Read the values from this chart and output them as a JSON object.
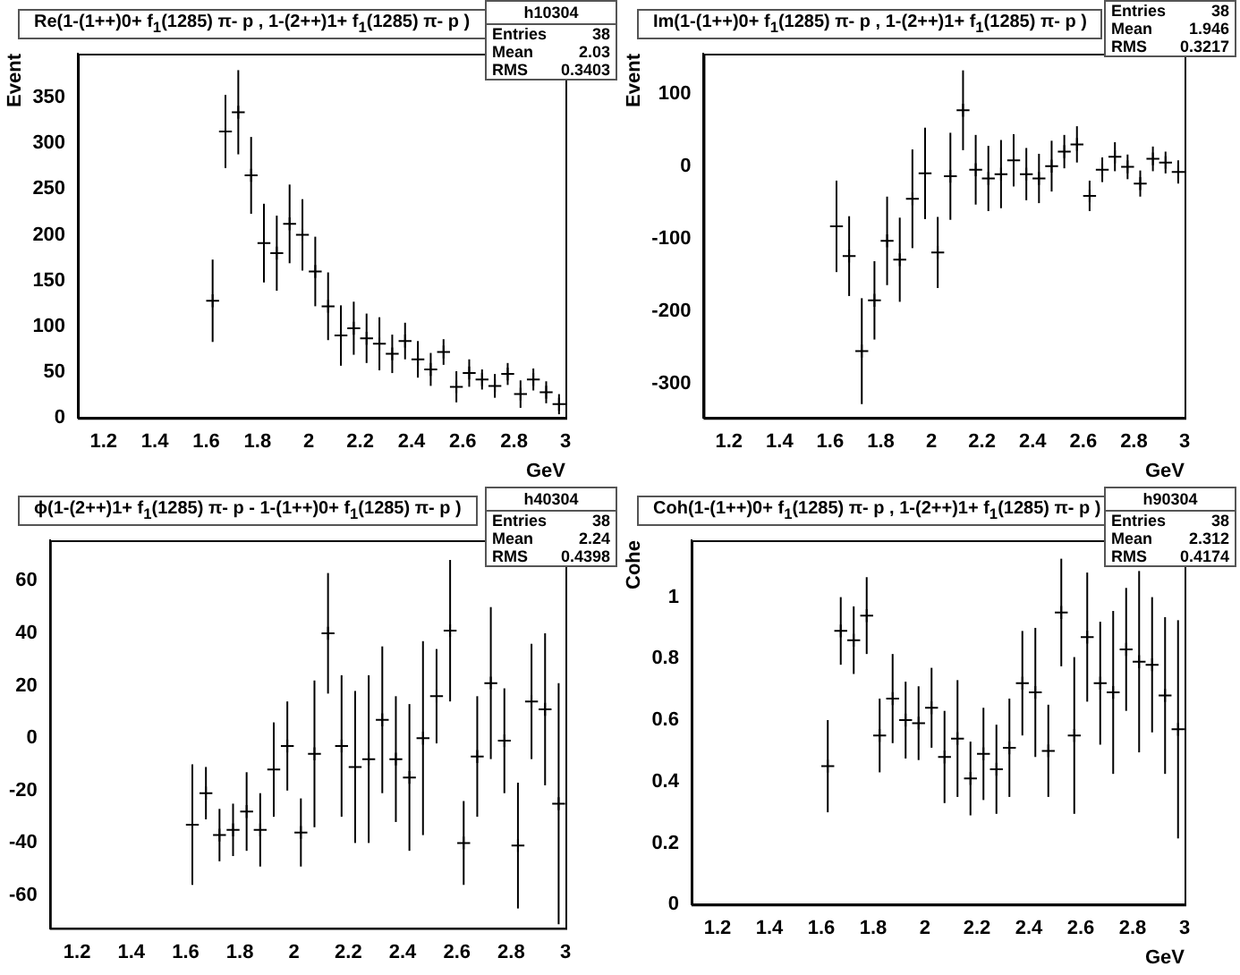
{
  "chart_data": [
    {
      "type": "scatter",
      "title": "Re(1-(1++)0+ f$_{1}$(1285) π- p , 1-(2++)1+ f$_{1}$(1285) π- p )",
      "xlabel": "GeV",
      "ylabel": "Event",
      "color": "#000000",
      "marker": "cross",
      "grid": false,
      "x": [
        1.625,
        1.675,
        1.725,
        1.775,
        1.825,
        1.875,
        1.925,
        1.975,
        2.025,
        2.075,
        2.125,
        2.175,
        2.225,
        2.275,
        2.325,
        2.375,
        2.425,
        2.475,
        2.525,
        2.575,
        2.625,
        2.675,
        2.725,
        2.775,
        2.825,
        2.875,
        2.925,
        2.975
      ],
      "values": [
        128,
        313,
        334,
        265,
        191,
        180,
        212,
        200,
        160,
        122,
        90,
        98,
        87,
        81,
        70,
        84,
        64,
        53,
        72,
        34,
        49,
        42,
        35,
        48,
        26,
        42,
        28,
        15
      ],
      "errors": [
        45,
        40,
        46,
        42,
        43,
        41,
        43,
        39,
        38,
        37,
        33,
        29,
        27,
        29,
        21,
        20,
        20,
        18,
        14,
        17,
        15,
        11,
        13,
        12,
        15,
        12,
        12,
        11
      ],
      "xlim": [
        1.1,
        3
      ],
      "ylim": [
        0,
        398
      ],
      "xticks": [
        1.2,
        1.4,
        1.6,
        1.8,
        2,
        2.2,
        2.4,
        2.6,
        2.8,
        3
      ],
      "yticks": [
        0,
        50,
        100,
        150,
        200,
        250,
        300,
        350
      ],
      "annotations": [
        "h10304",
        "Entries",
        "38",
        "Mean",
        "2.03",
        "RMS",
        "0.3403"
      ]
    },
    {
      "type": "scatter",
      "title": "Im(1-(1++)0+ f$_{1}$(1285) π- p , 1-(2++)1+ f$_{1}$(1285) π- p )",
      "xlabel": "GeV",
      "ylabel": "Event",
      "color": "#000000",
      "marker": "cross",
      "grid": false,
      "x": [
        1.625,
        1.675,
        1.725,
        1.775,
        1.825,
        1.875,
        1.925,
        1.975,
        2.025,
        2.075,
        2.125,
        2.175,
        2.225,
        2.275,
        2.325,
        2.375,
        2.425,
        2.475,
        2.525,
        2.575,
        2.625,
        2.675,
        2.725,
        2.775,
        2.825,
        2.875,
        2.925,
        2.975
      ],
      "values": [
        -83,
        -124,
        -255,
        -185,
        -103,
        -129,
        -45,
        -10,
        -119,
        -14,
        77,
        -5,
        -17,
        -11,
        8,
        -11,
        -17,
        0,
        20,
        30,
        -41,
        -5,
        13,
        -1,
        -24,
        10,
        5,
        -8
      ],
      "errors": [
        63,
        55,
        73,
        54,
        61,
        58,
        68,
        63,
        49,
        60,
        55,
        48,
        45,
        47,
        36,
        36,
        34,
        35,
        23,
        25,
        21,
        17,
        20,
        17,
        18,
        17,
        15,
        16
      ],
      "xlim": [
        1.1,
        3
      ],
      "ylim": [
        -347,
        155
      ],
      "xticks": [
        1.2,
        1.4,
        1.6,
        1.8,
        2,
        2.2,
        2.4,
        2.6,
        2.8,
        3
      ],
      "yticks": [
        -300,
        -200,
        -100,
        0,
        100
      ],
      "annotations": [
        "Entries",
        "38",
        "Mean",
        "1.946",
        "RMS",
        "0.3217"
      ]
    },
    {
      "type": "scatter",
      "title": "ϕ(1-(2++)1+ f$_{1}$(1285) π- p - 1-(1++)0+ f$_{1}$(1285) π- p )",
      "color": "#000000",
      "marker": "cross",
      "grid": false,
      "x": [
        1.625,
        1.675,
        1.725,
        1.775,
        1.825,
        1.875,
        1.925,
        1.975,
        2.025,
        2.075,
        2.125,
        2.175,
        2.225,
        2.275,
        2.325,
        2.375,
        2.425,
        2.475,
        2.525,
        2.575,
        2.625,
        2.675,
        2.725,
        2.775,
        2.825,
        2.875,
        2.925,
        2.975
      ],
      "values": [
        -33,
        -21,
        -37,
        -35,
        -28,
        -35,
        -12,
        -3,
        -36,
        -6,
        40,
        -3,
        -11,
        -8,
        7,
        -8,
        -15,
        0,
        16,
        41,
        -40,
        -7,
        21,
        -1,
        -41,
        14,
        11,
        -25
      ],
      "errors": [
        23,
        10,
        10,
        10,
        15,
        14,
        18,
        17,
        13,
        28,
        23,
        27,
        29,
        32,
        28,
        24,
        28,
        37,
        18,
        27,
        16,
        23,
        29,
        20,
        24,
        22,
        29,
        46
      ],
      "xlim": [
        1.1,
        3
      ],
      "ylim": [
        -72.5,
        75.5
      ],
      "xticks": [
        1.2,
        1.4,
        1.6,
        1.8,
        2,
        2.2,
        2.4,
        2.6,
        2.8,
        3
      ],
      "yticks": [
        -60,
        -40,
        -20,
        0,
        20,
        40,
        60
      ],
      "annotations": [
        "h40304",
        "Entries",
        "38",
        "Mean",
        "2.24",
        "RMS",
        "0.4398"
      ]
    },
    {
      "type": "scatter",
      "title": "Coh(1-(1++)0+ f$_{1}$(1285) π- p , 1-(2++)1+ f$_{1}$(1285) π- p )",
      "xlabel": "GeV",
      "ylabel": "Cohe",
      "color": "#000000",
      "marker": "cross",
      "grid": false,
      "x": [
        1.625,
        1.675,
        1.725,
        1.775,
        1.825,
        1.875,
        1.925,
        1.975,
        2.025,
        2.075,
        2.125,
        2.175,
        2.225,
        2.275,
        2.325,
        2.375,
        2.425,
        2.475,
        2.525,
        2.575,
        2.625,
        2.675,
        2.725,
        2.775,
        2.825,
        2.875,
        2.925,
        2.975
      ],
      "values": [
        0.45,
        0.89,
        0.86,
        0.94,
        0.55,
        0.67,
        0.6,
        0.59,
        0.64,
        0.48,
        0.54,
        0.41,
        0.49,
        0.44,
        0.51,
        0.72,
        0.69,
        0.5,
        0.95,
        0.55,
        0.87,
        0.72,
        0.69,
        0.83,
        0.79,
        0.78,
        0.68,
        0.57
      ],
      "errors": [
        0.15,
        0.11,
        0.11,
        0.125,
        0.12,
        0.145,
        0.125,
        0.12,
        0.13,
        0.15,
        0.19,
        0.12,
        0.15,
        0.145,
        0.16,
        0.17,
        0.21,
        0.15,
        0.175,
        0.255,
        0.21,
        0.2,
        0.265,
        0.2,
        0.295,
        0.22,
        0.255,
        0.355
      ],
      "xlim": [
        1.1,
        3
      ],
      "ylim": [
        0,
        1.185
      ],
      "xticks": [
        1.2,
        1.4,
        1.6,
        1.8,
        2,
        2.2,
        2.4,
        2.6,
        2.8,
        3
      ],
      "yticks": [
        0,
        0.2,
        0.4,
        0.6,
        0.8,
        1
      ],
      "annotations": [
        "h90304",
        "Entries",
        "38",
        "Mean",
        "2.312",
        "RMS",
        "0.4174"
      ]
    }
  ]
}
